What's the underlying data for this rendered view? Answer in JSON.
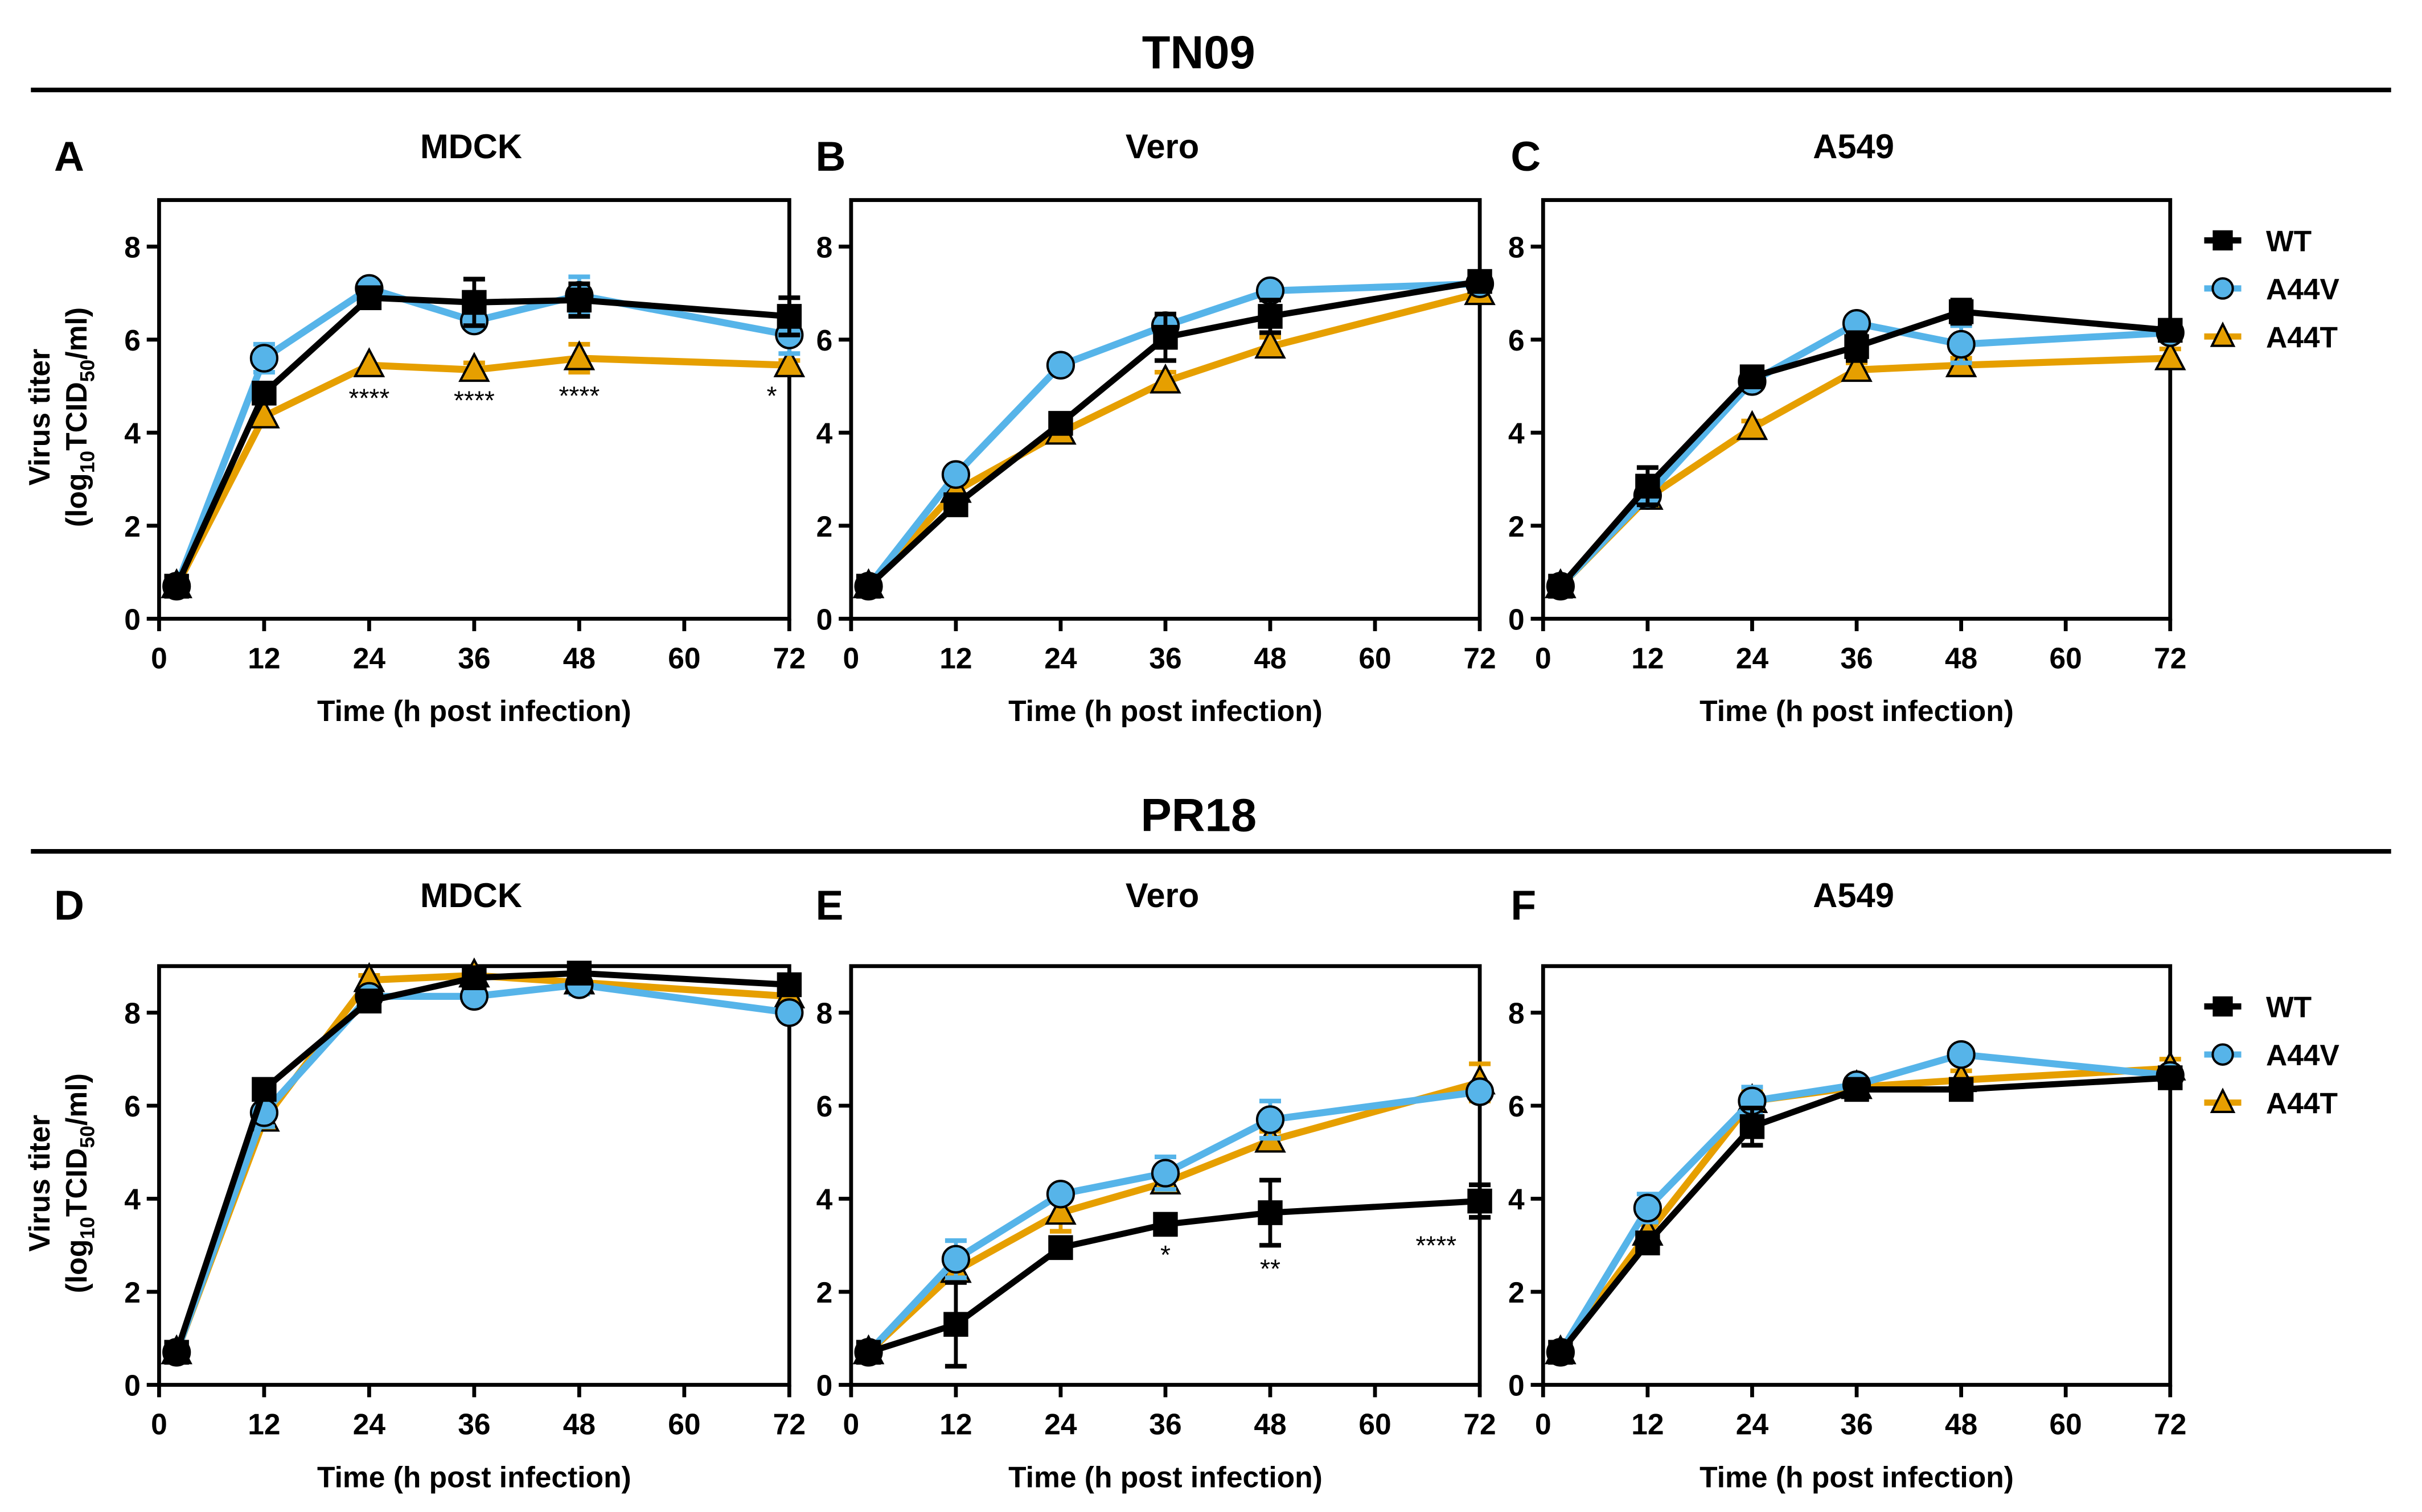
{
  "figure": {
    "groups": [
      {
        "title": "TN09",
        "panels": [
          "A",
          "B",
          "C"
        ]
      },
      {
        "title": "PR18",
        "panels": [
          "D",
          "E",
          "F"
        ]
      }
    ]
  },
  "chart_data": [
    {
      "type": "line",
      "panel": "A",
      "group": "TN09",
      "title": "MDCK",
      "xlabel": "Time (h post infection)",
      "ylabel": "Virus titer",
      "ylabel_line2": "(log10TCID50/ml)",
      "xlim": [
        0,
        72
      ],
      "ylim": [
        0,
        9
      ],
      "xticks": [
        0,
        12,
        24,
        36,
        48,
        60,
        72
      ],
      "yticks": [
        0,
        2,
        4,
        6,
        8
      ],
      "x": [
        2,
        12,
        24,
        36,
        48,
        72
      ],
      "series": [
        {
          "name": "WT",
          "values": [
            0.7,
            4.85,
            6.9,
            6.8,
            6.85,
            6.5
          ],
          "errors": [
            0,
            0.1,
            0.15,
            0.5,
            0.35,
            0.4
          ]
        },
        {
          "name": "A44V",
          "values": [
            0.7,
            5.6,
            7.1,
            6.4,
            6.95,
            6.1
          ],
          "errors": [
            0,
            0.3,
            0.05,
            0.1,
            0.4,
            0.4
          ]
        },
        {
          "name": "A44T",
          "values": [
            0.7,
            4.35,
            5.45,
            5.35,
            5.6,
            5.45
          ],
          "errors": [
            0,
            0.1,
            0.05,
            0.15,
            0.3,
            0.1
          ]
        }
      ],
      "annotations": [
        {
          "x": 24,
          "y": 4.55,
          "text": "****"
        },
        {
          "x": 36,
          "y": 4.5,
          "text": "****"
        },
        {
          "x": 48,
          "y": 4.6,
          "text": "****"
        },
        {
          "x": 70,
          "y": 4.6,
          "text": "*"
        }
      ],
      "legend": false
    },
    {
      "type": "line",
      "panel": "B",
      "group": "TN09",
      "title": "Vero",
      "xlabel": "Time (h post infection)",
      "ylabel": "",
      "xlim": [
        0,
        72
      ],
      "ylim": [
        0,
        9
      ],
      "xticks": [
        0,
        12,
        24,
        36,
        48,
        60,
        72
      ],
      "yticks": [
        0,
        2,
        4,
        6,
        8
      ],
      "x": [
        2,
        12,
        24,
        36,
        48,
        72
      ],
      "series": [
        {
          "name": "WT",
          "values": [
            0.7,
            2.45,
            4.2,
            6.05,
            6.5,
            7.25
          ],
          "errors": [
            0,
            0.1,
            0.15,
            0.5,
            0.35,
            0.1
          ]
        },
        {
          "name": "A44V",
          "values": [
            0.7,
            3.1,
            5.45,
            6.3,
            7.05,
            7.2
          ],
          "errors": [
            0,
            0.1,
            0.05,
            0.1,
            0.15,
            0.05
          ]
        },
        {
          "name": "A44T",
          "values": [
            0.7,
            2.75,
            4.0,
            5.1,
            5.85,
            7.0
          ],
          "errors": [
            0,
            0.1,
            0.1,
            0.2,
            0.2,
            0.1
          ]
        }
      ],
      "annotations": [],
      "legend": false
    },
    {
      "type": "line",
      "panel": "C",
      "group": "TN09",
      "title": "A549",
      "xlabel": "Time (h post infection)",
      "ylabel": "",
      "xlim": [
        0,
        72
      ],
      "ylim": [
        0,
        9
      ],
      "xticks": [
        0,
        12,
        24,
        36,
        48,
        60,
        72
      ],
      "yticks": [
        0,
        2,
        4,
        6,
        8
      ],
      "x": [
        2,
        12,
        24,
        36,
        48,
        72
      ],
      "series": [
        {
          "name": "WT",
          "values": [
            0.7,
            2.85,
            5.2,
            5.85,
            6.6,
            6.2
          ],
          "errors": [
            0,
            0.4,
            0.15,
            0.3,
            0.25,
            0.1
          ]
        },
        {
          "name": "A44V",
          "values": [
            0.7,
            2.65,
            5.1,
            6.35,
            5.9,
            6.15
          ],
          "errors": [
            0,
            0.2,
            0.1,
            0.1,
            0.4,
            0.1
          ]
        },
        {
          "name": "A44T",
          "values": [
            0.7,
            2.6,
            4.1,
            5.35,
            5.45,
            5.6
          ],
          "errors": [
            0,
            0.15,
            0.15,
            0.15,
            0.15,
            0.2
          ]
        }
      ],
      "annotations": [],
      "legend": true,
      "legend_position": "right"
    },
    {
      "type": "line",
      "panel": "D",
      "group": "PR18",
      "title": "MDCK",
      "xlabel": "Time (h post infection)",
      "ylabel": "Virus titer",
      "ylabel_line2": "(log10TCID50/ml)",
      "xlim": [
        0,
        72
      ],
      "ylim": [
        0,
        9
      ],
      "xticks": [
        0,
        12,
        24,
        36,
        48,
        60,
        72
      ],
      "yticks": [
        0,
        2,
        4,
        6,
        8
      ],
      "x": [
        2,
        12,
        24,
        36,
        48,
        72
      ],
      "series": [
        {
          "name": "WT",
          "values": [
            0.7,
            6.35,
            8.25,
            8.75,
            8.85,
            8.6
          ],
          "errors": [
            0,
            0.1,
            0.1,
            0.15,
            0.15,
            0.2
          ]
        },
        {
          "name": "A44V",
          "values": [
            0.7,
            5.85,
            8.35,
            8.35,
            8.6,
            8.0
          ],
          "errors": [
            0,
            0.3,
            0.1,
            0.1,
            0.2,
            0.1
          ]
        },
        {
          "name": "A44T",
          "values": [
            0.7,
            5.7,
            8.7,
            8.8,
            8.65,
            8.35
          ],
          "errors": [
            0,
            0.2,
            0.1,
            0.1,
            0.1,
            0.15
          ]
        }
      ],
      "annotations": [],
      "legend": false
    },
    {
      "type": "line",
      "panel": "E",
      "group": "PR18",
      "title": "Vero",
      "xlabel": "Time (h post infection)",
      "ylabel": "",
      "xlim": [
        0,
        72
      ],
      "ylim": [
        0,
        9
      ],
      "xticks": [
        0,
        12,
        24,
        36,
        48,
        60,
        72
      ],
      "yticks": [
        0,
        2,
        4,
        6,
        8
      ],
      "x": [
        2,
        12,
        24,
        36,
        48,
        72
      ],
      "series": [
        {
          "name": "WT",
          "values": [
            0.7,
            1.3,
            2.95,
            3.45,
            3.7,
            3.95
          ],
          "errors": [
            0,
            0.9,
            0.1,
            0.1,
            0.7,
            0.35
          ]
        },
        {
          "name": "A44V",
          "values": [
            0.7,
            2.7,
            4.1,
            4.55,
            5.7,
            6.3
          ],
          "errors": [
            0,
            0.4,
            0.1,
            0.35,
            0.4,
            0.1
          ]
        },
        {
          "name": "A44T",
          "values": [
            0.7,
            2.45,
            3.7,
            4.35,
            5.25,
            6.5
          ],
          "errors": [
            0,
            0.2,
            0.4,
            0.15,
            0.2,
            0.4
          ]
        }
      ],
      "annotations": [
        {
          "x": 36,
          "y": 2.6,
          "text": "*"
        },
        {
          "x": 48,
          "y": 2.3,
          "text": "**"
        },
        {
          "x": 67,
          "y": 2.8,
          "text": "****"
        }
      ],
      "legend": false
    },
    {
      "type": "line",
      "panel": "F",
      "group": "PR18",
      "title": "A549",
      "xlabel": "Time (h post infection)",
      "ylabel": "",
      "xlim": [
        0,
        72
      ],
      "ylim": [
        0,
        9
      ],
      "xticks": [
        0,
        12,
        24,
        36,
        48,
        60,
        72
      ],
      "yticks": [
        0,
        2,
        4,
        6,
        8
      ],
      "x": [
        2,
        12,
        24,
        36,
        48,
        72
      ],
      "series": [
        {
          "name": "WT",
          "values": [
            0.7,
            3.05,
            5.55,
            6.35,
            6.35,
            6.6
          ],
          "errors": [
            0,
            0.15,
            0.4,
            0.1,
            0.1,
            0.2
          ]
        },
        {
          "name": "A44V",
          "values": [
            0.7,
            3.8,
            6.1,
            6.45,
            7.1,
            6.65
          ],
          "errors": [
            0,
            0.3,
            0.3,
            0.1,
            0.1,
            0.1
          ]
        },
        {
          "name": "A44T",
          "values": [
            0.7,
            3.25,
            6.1,
            6.4,
            6.55,
            6.8
          ],
          "errors": [
            0,
            0.2,
            0.2,
            0.1,
            0.2,
            0.2
          ]
        }
      ],
      "annotations": [],
      "legend": true,
      "legend_position": "right"
    }
  ],
  "series_styles": {
    "WT": {
      "color": "#000000",
      "marker": "square"
    },
    "A44V": {
      "color": "#56B4E9",
      "marker": "circle"
    },
    "A44T": {
      "color": "#E69F00",
      "marker": "triangle"
    }
  }
}
